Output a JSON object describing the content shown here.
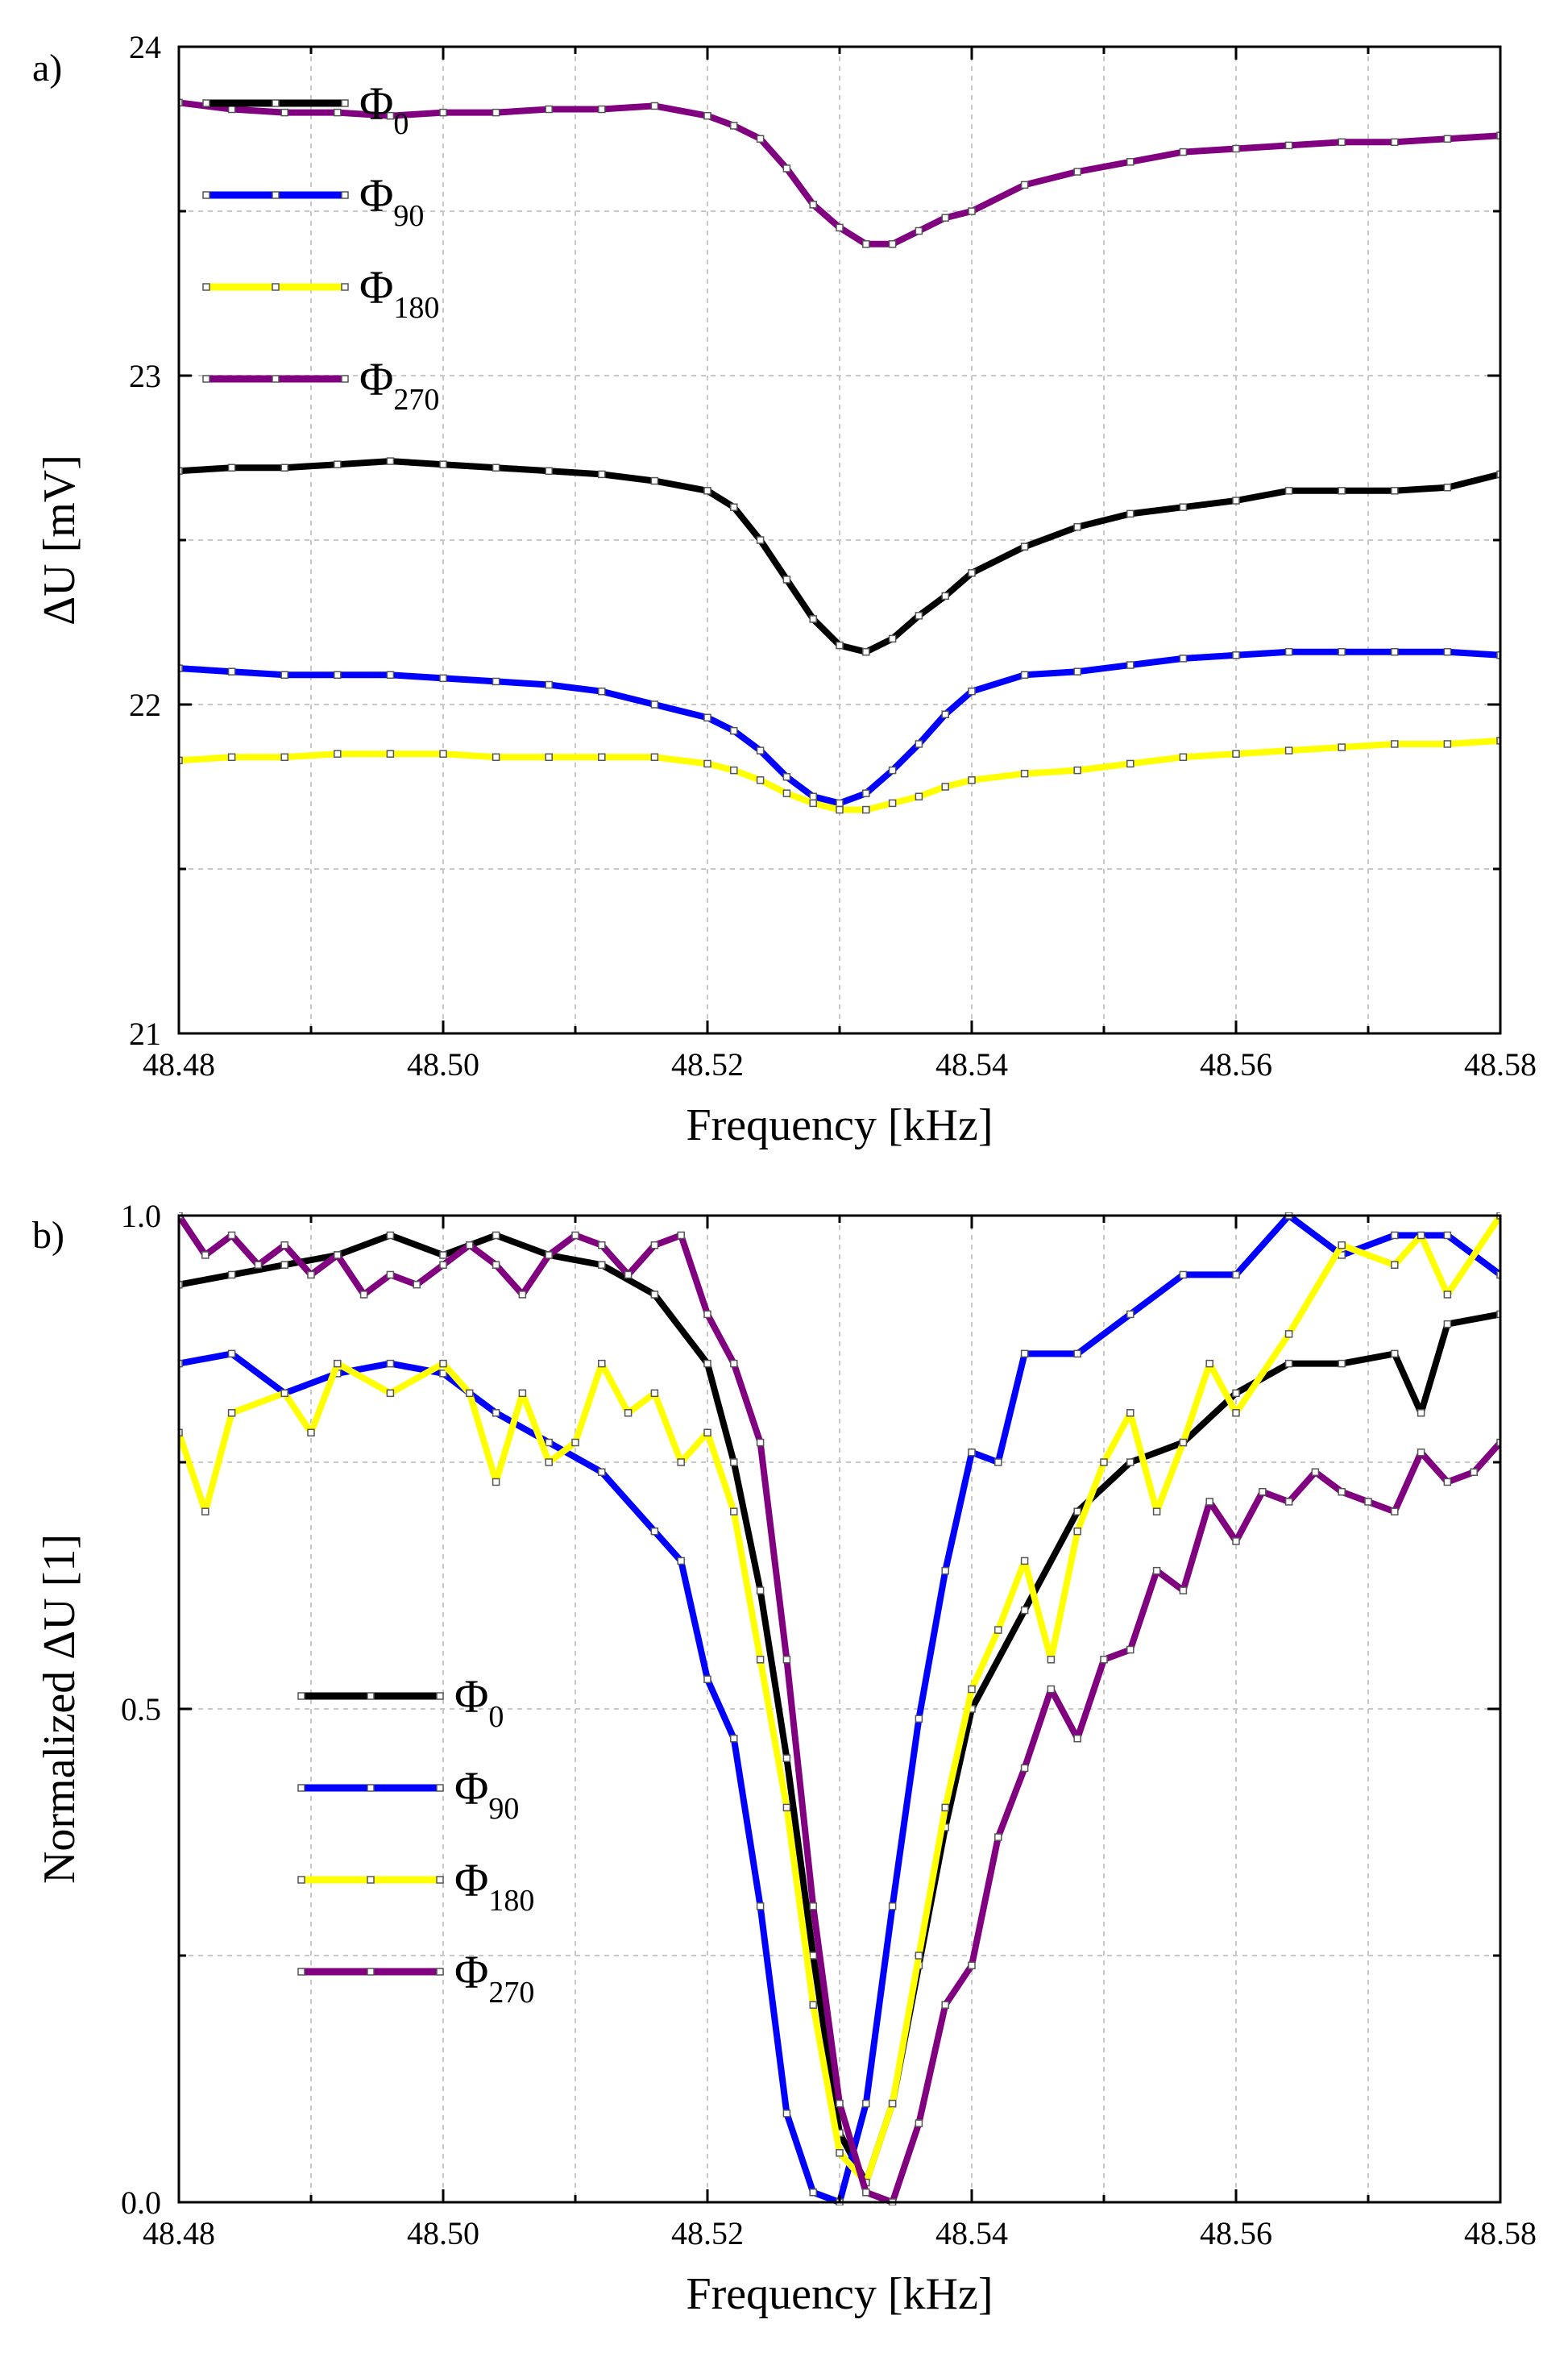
{
  "figure": {
    "panels": [
      "a",
      "b"
    ]
  },
  "chart_data": [
    {
      "type": "line",
      "panel_label": "a)",
      "title": "",
      "xlabel": "Frequency [kHz]",
      "ylabel": "ΔU [mV]",
      "xlim": [
        48.48,
        48.58
      ],
      "ylim": [
        21,
        24
      ],
      "xticks": [
        48.48,
        48.5,
        48.52,
        48.54,
        48.56,
        48.58
      ],
      "xtick_labels": [
        "48.48",
        "48.50",
        "48.52",
        "48.54",
        "48.56",
        "48.58"
      ],
      "yticks": [
        21,
        22,
        23,
        24
      ],
      "ytick_labels": [
        "21",
        "22",
        "23",
        "24"
      ],
      "grid": true,
      "legend_position": "top-left",
      "series": [
        {
          "name": "Φ",
          "subscript": "0",
          "color": "#000000",
          "x": [
            48.48,
            48.484,
            48.488,
            48.492,
            48.496,
            48.5,
            48.504,
            48.508,
            48.512,
            48.516,
            48.52,
            48.522,
            48.524,
            48.526,
            48.528,
            48.53,
            48.532,
            48.534,
            48.536,
            48.538,
            48.54,
            48.544,
            48.548,
            48.552,
            48.556,
            48.56,
            48.564,
            48.568,
            48.572,
            48.576,
            48.58
          ],
          "values": [
            22.71,
            22.72,
            22.72,
            22.73,
            22.74,
            22.73,
            22.72,
            22.71,
            22.7,
            22.68,
            22.65,
            22.6,
            22.5,
            22.38,
            22.26,
            22.18,
            22.16,
            22.2,
            22.27,
            22.33,
            22.4,
            22.48,
            22.54,
            22.58,
            22.6,
            22.62,
            22.65,
            22.65,
            22.65,
            22.66,
            22.7
          ]
        },
        {
          "name": "Φ",
          "subscript": "90",
          "color": "#0000ff",
          "x": [
            48.48,
            48.484,
            48.488,
            48.492,
            48.496,
            48.5,
            48.504,
            48.508,
            48.512,
            48.516,
            48.52,
            48.522,
            48.524,
            48.526,
            48.528,
            48.53,
            48.532,
            48.534,
            48.536,
            48.538,
            48.54,
            48.544,
            48.548,
            48.552,
            48.556,
            48.56,
            48.564,
            48.568,
            48.572,
            48.576,
            48.58
          ],
          "values": [
            22.11,
            22.1,
            22.09,
            22.09,
            22.09,
            22.08,
            22.07,
            22.06,
            22.04,
            22.0,
            21.96,
            21.92,
            21.86,
            21.78,
            21.72,
            21.7,
            21.73,
            21.8,
            21.88,
            21.97,
            22.04,
            22.09,
            22.1,
            22.12,
            22.14,
            22.15,
            22.16,
            22.16,
            22.16,
            22.16,
            22.15
          ]
        },
        {
          "name": "Φ",
          "subscript": "180",
          "color": "#ffff00",
          "x": [
            48.48,
            48.484,
            48.488,
            48.492,
            48.496,
            48.5,
            48.504,
            48.508,
            48.512,
            48.516,
            48.52,
            48.522,
            48.524,
            48.526,
            48.528,
            48.53,
            48.532,
            48.534,
            48.536,
            48.538,
            48.54,
            48.544,
            48.548,
            48.552,
            48.556,
            48.56,
            48.564,
            48.568,
            48.572,
            48.576,
            48.58
          ],
          "values": [
            21.83,
            21.84,
            21.84,
            21.85,
            21.85,
            21.85,
            21.84,
            21.84,
            21.84,
            21.84,
            21.82,
            21.8,
            21.77,
            21.73,
            21.7,
            21.68,
            21.68,
            21.7,
            21.72,
            21.75,
            21.77,
            21.79,
            21.8,
            21.82,
            21.84,
            21.85,
            21.86,
            21.87,
            21.88,
            21.88,
            21.89
          ]
        },
        {
          "name": "Φ",
          "subscript": "270",
          "color": "#800080",
          "x": [
            48.48,
            48.484,
            48.488,
            48.492,
            48.496,
            48.5,
            48.504,
            48.508,
            48.512,
            48.516,
            48.52,
            48.522,
            48.524,
            48.526,
            48.528,
            48.53,
            48.532,
            48.534,
            48.536,
            48.538,
            48.54,
            48.544,
            48.548,
            48.552,
            48.556,
            48.56,
            48.564,
            48.568,
            48.572,
            48.576,
            48.58
          ],
          "values": [
            23.83,
            23.81,
            23.8,
            23.8,
            23.79,
            23.8,
            23.8,
            23.81,
            23.81,
            23.82,
            23.79,
            23.76,
            23.72,
            23.63,
            23.52,
            23.45,
            23.4,
            23.4,
            23.44,
            23.48,
            23.5,
            23.58,
            23.62,
            23.65,
            23.68,
            23.69,
            23.7,
            23.71,
            23.71,
            23.72,
            23.73
          ]
        }
      ]
    },
    {
      "type": "line",
      "panel_label": "b)",
      "title": "",
      "xlabel": "Frequency [kHz]",
      "ylabel": "Normalized ΔU [1]",
      "xlim": [
        48.48,
        48.58
      ],
      "ylim": [
        0,
        1
      ],
      "xticks": [
        48.48,
        48.5,
        48.52,
        48.54,
        48.56,
        48.58
      ],
      "xtick_labels": [
        "48.48",
        "48.50",
        "48.52",
        "48.54",
        "48.56",
        "48.58"
      ],
      "yticks": [
        0,
        0.5,
        1
      ],
      "ytick_labels": [
        "0.0",
        "0.5",
        "1.0"
      ],
      "grid": true,
      "legend_position": "center-left",
      "series": [
        {
          "name": "Φ",
          "subscript": "0",
          "color": "#000000",
          "x": [
            48.48,
            48.484,
            48.488,
            48.492,
            48.496,
            48.5,
            48.504,
            48.508,
            48.512,
            48.516,
            48.52,
            48.522,
            48.524,
            48.526,
            48.528,
            48.53,
            48.532,
            48.534,
            48.536,
            48.538,
            48.54,
            48.544,
            48.548,
            48.552,
            48.556,
            48.56,
            48.564,
            48.568,
            48.572,
            48.574,
            48.576,
            48.58
          ],
          "values": [
            0.93,
            0.94,
            0.95,
            0.96,
            0.98,
            0.96,
            0.98,
            0.96,
            0.95,
            0.92,
            0.85,
            0.75,
            0.62,
            0.45,
            0.25,
            0.07,
            0.02,
            0.1,
            0.24,
            0.38,
            0.5,
            0.6,
            0.7,
            0.75,
            0.77,
            0.82,
            0.85,
            0.85,
            0.86,
            0.8,
            0.89,
            0.9
          ]
        },
        {
          "name": "Φ",
          "subscript": "90",
          "color": "#0000ff",
          "x": [
            48.48,
            48.484,
            48.488,
            48.492,
            48.496,
            48.5,
            48.504,
            48.508,
            48.512,
            48.516,
            48.518,
            48.52,
            48.522,
            48.524,
            48.526,
            48.528,
            48.53,
            48.532,
            48.534,
            48.536,
            48.538,
            48.54,
            48.542,
            48.544,
            48.548,
            48.552,
            48.556,
            48.56,
            48.564,
            48.568,
            48.572,
            48.576,
            48.58
          ],
          "values": [
            0.85,
            0.86,
            0.82,
            0.84,
            0.85,
            0.84,
            0.8,
            0.77,
            0.74,
            0.68,
            0.65,
            0.53,
            0.47,
            0.3,
            0.09,
            0.01,
            0.0,
            0.1,
            0.3,
            0.49,
            0.64,
            0.76,
            0.75,
            0.86,
            0.86,
            0.9,
            0.94,
            0.94,
            1.0,
            0.96,
            0.98,
            0.98,
            0.94
          ]
        },
        {
          "name": "Φ",
          "subscript": "180",
          "color": "#ffff00",
          "x": [
            48.48,
            48.482,
            48.484,
            48.488,
            48.49,
            48.492,
            48.496,
            48.5,
            48.502,
            48.504,
            48.506,
            48.508,
            48.51,
            48.512,
            48.514,
            48.516,
            48.518,
            48.52,
            48.522,
            48.524,
            48.526,
            48.528,
            48.53,
            48.532,
            48.534,
            48.536,
            48.538,
            48.54,
            48.542,
            48.544,
            48.546,
            48.548,
            48.55,
            48.552,
            48.554,
            48.556,
            48.558,
            48.56,
            48.564,
            48.568,
            48.572,
            48.574,
            48.576,
            48.58
          ],
          "values": [
            0.78,
            0.7,
            0.8,
            0.82,
            0.78,
            0.85,
            0.82,
            0.85,
            0.82,
            0.73,
            0.82,
            0.75,
            0.77,
            0.85,
            0.8,
            0.82,
            0.75,
            0.78,
            0.7,
            0.55,
            0.4,
            0.2,
            0.05,
            0.02,
            0.1,
            0.25,
            0.4,
            0.52,
            0.58,
            0.65,
            0.55,
            0.68,
            0.75,
            0.8,
            0.7,
            0.77,
            0.85,
            0.8,
            0.88,
            0.97,
            0.95,
            0.98,
            0.92,
            1.0
          ]
        },
        {
          "name": "Φ",
          "subscript": "270",
          "color": "#800080",
          "x": [
            48.48,
            48.482,
            48.484,
            48.486,
            48.488,
            48.49,
            48.492,
            48.494,
            48.496,
            48.498,
            48.5,
            48.502,
            48.504,
            48.506,
            48.508,
            48.51,
            48.512,
            48.514,
            48.516,
            48.518,
            48.52,
            48.522,
            48.524,
            48.526,
            48.528,
            48.53,
            48.532,
            48.534,
            48.536,
            48.538,
            48.54,
            48.542,
            48.544,
            48.546,
            48.548,
            48.55,
            48.552,
            48.554,
            48.556,
            48.558,
            48.56,
            48.562,
            48.564,
            48.566,
            48.568,
            48.57,
            48.572,
            48.574,
            48.576,
            48.578,
            48.58
          ],
          "values": [
            1.0,
            0.96,
            0.98,
            0.95,
            0.97,
            0.94,
            0.96,
            0.92,
            0.94,
            0.93,
            0.95,
            0.97,
            0.95,
            0.92,
            0.96,
            0.98,
            0.97,
            0.94,
            0.97,
            0.98,
            0.9,
            0.85,
            0.77,
            0.55,
            0.3,
            0.1,
            0.01,
            0.0,
            0.08,
            0.2,
            0.24,
            0.37,
            0.44,
            0.52,
            0.47,
            0.55,
            0.56,
            0.64,
            0.62,
            0.71,
            0.67,
            0.72,
            0.71,
            0.74,
            0.72,
            0.71,
            0.7,
            0.76,
            0.73,
            0.74,
            0.77
          ]
        }
      ]
    }
  ]
}
